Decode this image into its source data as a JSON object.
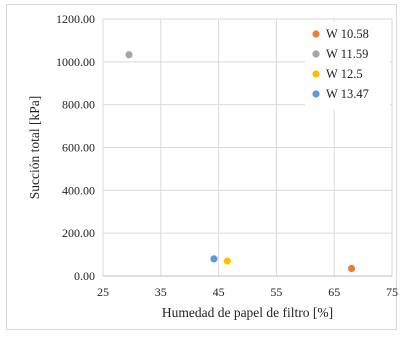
{
  "chart_data": {
    "type": "scatter",
    "title": "",
    "xlabel": "Humedad de papel de filtro [%]",
    "ylabel": "Succión total [kPa]",
    "xlim": [
      25,
      75
    ],
    "ylim": [
      0,
      1200
    ],
    "x_ticks": [
      25,
      35,
      45,
      55,
      65,
      75
    ],
    "x_tick_labels": [
      "25",
      "35",
      "45",
      "55",
      "65",
      "75"
    ],
    "y_ticks": [
      0,
      200,
      400,
      600,
      800,
      1000,
      1200
    ],
    "y_tick_labels": [
      "0.00",
      "200.00",
      "400.00",
      "600.00",
      "800.00",
      "1000.00",
      "1200.00"
    ],
    "grid": true,
    "legend_position": "top-right",
    "series": [
      {
        "name": "W 10.58",
        "color": "#ED7D31",
        "points": [
          {
            "x": 68.0,
            "y": 35
          }
        ]
      },
      {
        "name": "W 11.59",
        "color": "#A5A5A5",
        "points": [
          {
            "x": 29.5,
            "y": 1033
          }
        ]
      },
      {
        "name": "W 12.5",
        "color": "#FFC000",
        "points": [
          {
            "x": 46.5,
            "y": 70
          }
        ]
      },
      {
        "name": "W 13.47",
        "color": "#5B9BD5",
        "points": [
          {
            "x": 44.2,
            "y": 80
          }
        ]
      }
    ]
  }
}
